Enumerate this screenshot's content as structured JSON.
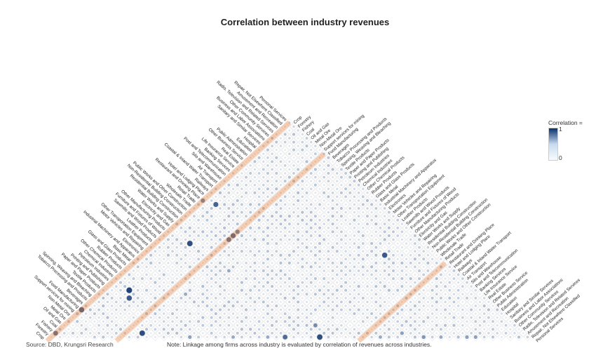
{
  "chart_data": {
    "type": "heatmap",
    "title": "Correlation between industry revenues",
    "source": "Source: DBD, Krungsri Research",
    "note": "Note: Linkage among firms across industry is evaluated by correlation of revenues across industries.",
    "legend": {
      "title": "Correlation =",
      "max_label": "1",
      "min_label": "0",
      "range": [
        0,
        1
      ],
      "colors": [
        "#f7fbff",
        "#08306b"
      ]
    },
    "industries": [
      "Crop",
      "Forestry",
      "Fishery",
      "Coal",
      "Oil and Gas",
      "Metal Ore",
      "Non-Metal Ore",
      "Support services for mining",
      "Food Manufacturing",
      "Beverages",
      "Tobacco Processing and Products",
      "Spinning, Weaving and Bleaching",
      "Textile Products",
      "Paper and Paper Products",
      "Printing and Publishing",
      "Petroleum Industries",
      "Chemical Industries",
      "Other Chemical Products",
      "Rubber Products",
      "Glass and Glass Products",
      "Basic Metal",
      "Industrial Machinery and Apparatus",
      "Electronics",
      "Motor Vehicles and Repairing",
      "Other Transportation Equipment",
      "Leather Products",
      "Sawmills and Wood Products",
      "Furniture and Fixtures of Wood",
      "Other Manufacturing Products",
      "Electricity and Gas",
      "Water Works and Supply",
      "Residential Building Construction",
      "Non-Residential Building Construction",
      "Public Works and Other Construction",
      "Wholesale Trade",
      "Retail Trade",
      "Restaurant and Drinking Place",
      "Hotel and Lodging Place",
      "Railways",
      "Coastal & Inland Water Transport",
      "Air Transport",
      "Silo and Warehouse",
      "Post and Telecommunication",
      "Banking Services",
      "Life Insurance Service",
      "Real Estate",
      "Other Business Service",
      "Public Administration",
      "Education",
      "Hospital",
      "Sanitary and Similar Services",
      "Business and Labor Associations",
      "Other Community Services",
      "Radio, Television and Related Services",
      "Amusement and Recreation",
      "Repair, Not Elsewhere Classified",
      "Personal Services"
    ],
    "highlighted_industries": [
      "Crop",
      "Food Manufacturing",
      "Restaurant and Drinking Place"
    ],
    "strong_correlations": [
      {
        "a": "Crop",
        "b": "Food Manufacturing",
        "value": 0.8
      },
      {
        "a": "Crop",
        "b": "Restaurant and Drinking Place",
        "value": 0.6
      },
      {
        "a": "Food Manufacturing",
        "b": "Restaurant and Drinking Place",
        "value": 0.6
      },
      {
        "a": "Tobacco Processing and Products",
        "b": "Textile Products",
        "value": 0.85
      },
      {
        "a": "Oil and Gas",
        "b": "Petroleum Industries",
        "value": 0.8
      },
      {
        "a": "Coal",
        "b": "Chemical Industries",
        "value": 0.9
      },
      {
        "a": "Crop",
        "b": "Fishery",
        "value": 0.7
      },
      {
        "a": "Oil and Gas",
        "b": "Electricity and Gas",
        "value": 0.85
      },
      {
        "a": "Fishery",
        "b": "Hotel and Lodging Place",
        "value": 0.75
      },
      {
        "a": "Food Manufacturing",
        "b": "Retail Trade",
        "value": 0.75
      },
      {
        "a": "Food Manufacturing",
        "b": "Wholesale Trade",
        "value": 0.7
      },
      {
        "a": "Residential Building Construction",
        "b": "Non-Residential Building Construction",
        "value": 0.85
      },
      {
        "a": "Other Manufacturing Products",
        "b": "Sanitary and Similar Services",
        "value": 0.8
      },
      {
        "a": "Furniture and Fixtures of Wood",
        "b": "Other Manufacturing Products",
        "value": 0.7
      },
      {
        "a": "Public Works and Other Construction",
        "b": "Electricity and Gas",
        "value": 0.55
      },
      {
        "a": "Chemical Industries",
        "b": "Other Chemical Products",
        "value": 0.45
      },
      {
        "a": "Textile Products",
        "b": "Water Works and Supply",
        "value": 0.4
      },
      {
        "a": "Tobacco Processing and Products",
        "b": "Electronics",
        "value": 0.4
      },
      {
        "a": "Electronics",
        "b": "Industrial Machinery and Apparatus",
        "value": 0.4
      },
      {
        "a": "Hospital",
        "b": "Sanitary and Similar Services",
        "value": 0.45
      },
      {
        "a": "Railways",
        "b": "Coastal & Inland Water Transport",
        "value": 0.4
      },
      {
        "a": "Banking Services",
        "b": "Life Insurance Service",
        "value": 0.5
      },
      {
        "a": "Real Estate",
        "b": "Other Business Service",
        "value": 0.4
      },
      {
        "a": "Education",
        "b": "Hospital",
        "value": 0.45
      },
      {
        "a": "Leather Products",
        "b": "Sawmills and Wood Products",
        "value": 0.4
      },
      {
        "a": "Air Transport",
        "b": "Post and Telecommunication",
        "value": 0.45
      }
    ],
    "baseline_correlation": 0.18
  },
  "colors": {
    "highlight": "#e8792b",
    "low": "#f7fbff",
    "high": "#08306b",
    "grid": "#d9d9d9"
  }
}
